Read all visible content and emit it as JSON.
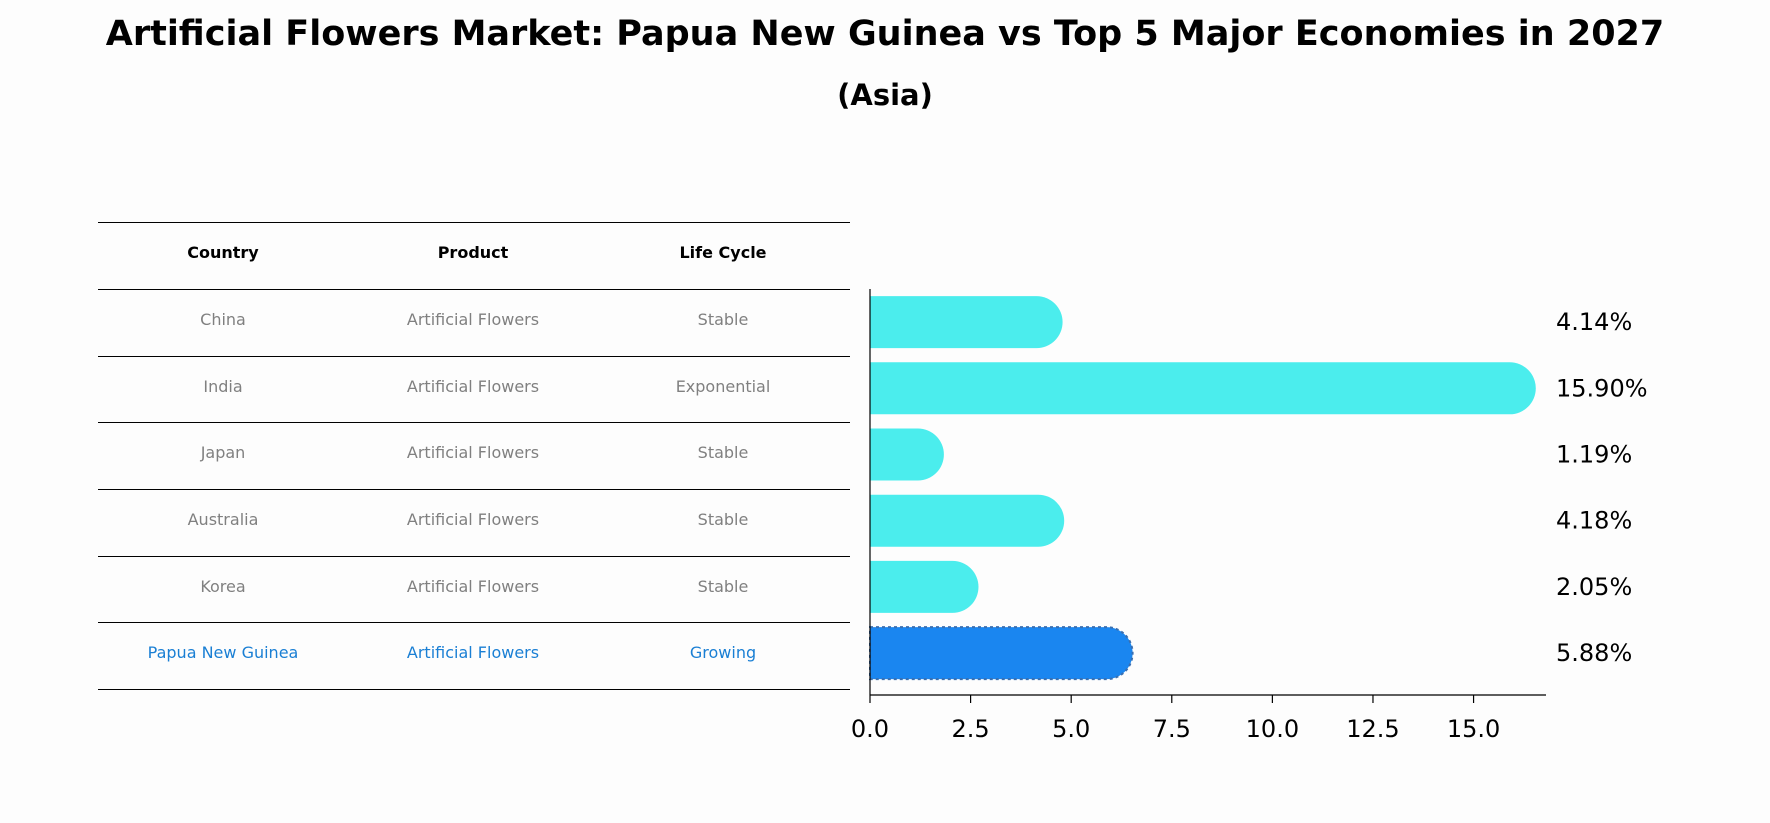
{
  "title": "Artificial Flowers Market: Papua New Guinea vs Top 5 Major Economies in 2027",
  "subtitle": "(Asia)",
  "table": {
    "headers": [
      "Country",
      "Product",
      "Life Cycle"
    ],
    "rows": [
      {
        "country": "China",
        "product": "Artificial Flowers",
        "life_cycle": "Stable"
      },
      {
        "country": "India",
        "product": "Artificial Flowers",
        "life_cycle": "Exponential"
      },
      {
        "country": "Japan",
        "product": "Artificial Flowers",
        "life_cycle": "Stable"
      },
      {
        "country": "Australia",
        "product": "Artificial Flowers",
        "life_cycle": "Stable"
      },
      {
        "country": "Korea",
        "product": "Artificial Flowers",
        "life_cycle": "Stable"
      },
      {
        "country": "Papua New Guinea",
        "product": "Artificial Flowers",
        "life_cycle": "Growing"
      }
    ]
  },
  "colors": {
    "bar": "#4beded",
    "highlight_bar": "#1a86f0",
    "highlight_text": "#1a7fd4",
    "muted_text": "#808080"
  },
  "chart_data": {
    "type": "bar",
    "orientation": "horizontal",
    "categories": [
      "China",
      "India",
      "Japan",
      "Australia",
      "Korea",
      "Papua New Guinea"
    ],
    "values": [
      4.14,
      15.9,
      1.19,
      4.18,
      2.05,
      5.88
    ],
    "value_labels": [
      "4.14%",
      "15.90%",
      "1.19%",
      "4.18%",
      "2.05%",
      "5.88%"
    ],
    "highlight_index": 5,
    "xlim": [
      0,
      16.8
    ],
    "xticks": [
      0.0,
      2.5,
      5.0,
      7.5,
      10.0,
      12.5,
      15.0
    ],
    "xtick_labels": [
      "0.0",
      "2.5",
      "5.0",
      "7.5",
      "10.0",
      "12.5",
      "15.0"
    ],
    "xlabel": "",
    "ylabel": ""
  }
}
